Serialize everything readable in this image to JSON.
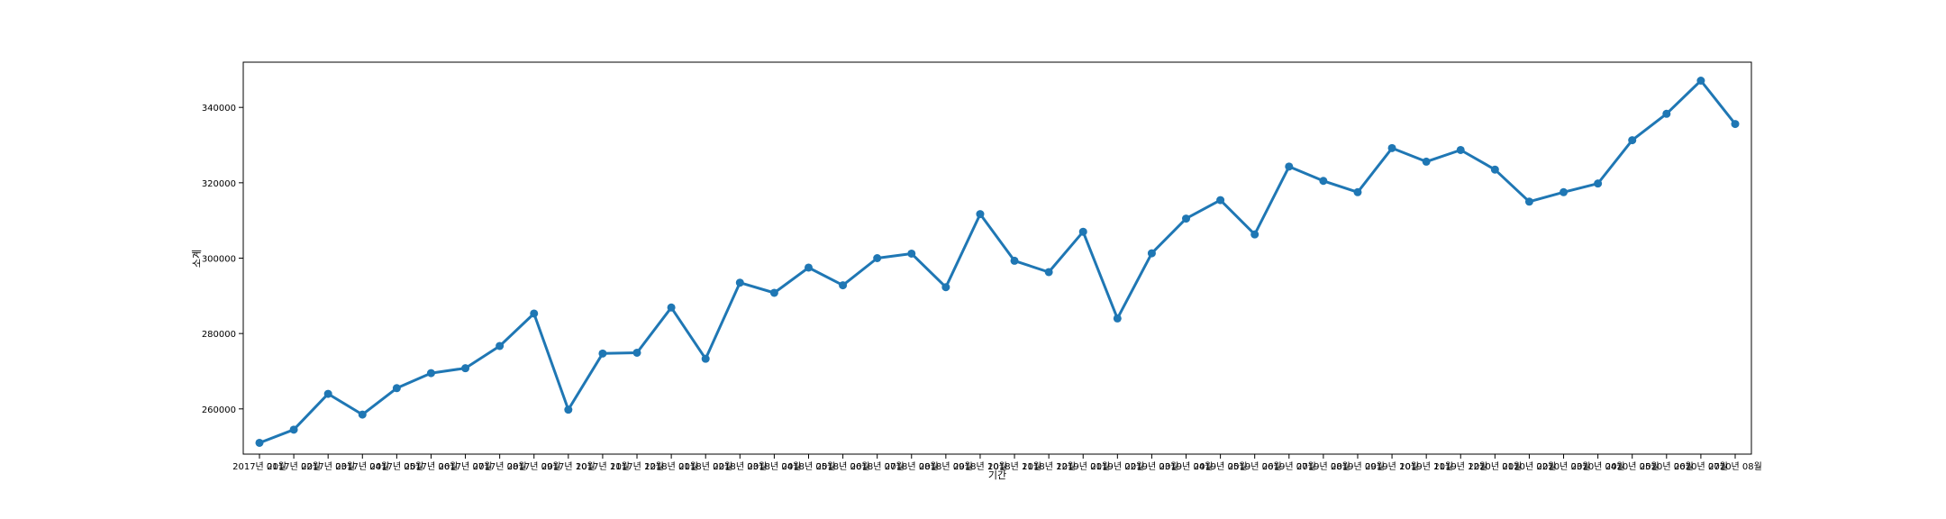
{
  "chart_data": {
    "type": "line",
    "xlabel": "기간",
    "ylabel": "소계",
    "ylim": [
      248000,
      352000
    ],
    "yticks": [
      260000,
      280000,
      300000,
      320000,
      340000
    ],
    "ytick_labels": [
      "260000",
      "280000",
      "300000",
      "320000",
      "340000"
    ],
    "grid": false,
    "legend": "none",
    "color": "#1f77b4",
    "categories": [
      "2017년 01월",
      "2017년 02월",
      "2017년 03월",
      "2017년 04월",
      "2017년 05월",
      "2017년 06월",
      "2017년 07월",
      "2017년 08월",
      "2017년 09월",
      "2017년 10월",
      "2017년 11월",
      "2017년 12월",
      "2018년 01월",
      "2018년 02월",
      "2018년 03월",
      "2018년 04월",
      "2018년 05월",
      "2018년 06월",
      "2018년 07월",
      "2018년 08월",
      "2018년 09월",
      "2018년 10월",
      "2018년 11월",
      "2018년 12월",
      "2019년 01월",
      "2019년 02월",
      "2019년 03월",
      "2019년 04월",
      "2019년 05월",
      "2019년 06월",
      "2019년 07월",
      "2019년 08월",
      "2019년 09월",
      "2019년 10월",
      "2019년 11월",
      "2019년 12월",
      "2020년 01월",
      "2020년 02월",
      "2020년 03월",
      "2020년 04월",
      "2020년 05월",
      "2020년 06월",
      "2020년 07월",
      "2020년 08월"
    ],
    "series": [
      {
        "values": [
          251000,
          254500,
          264000,
          258500,
          265500,
          269500,
          270800,
          276700,
          285300,
          259800,
          274700,
          274900,
          286900,
          273300,
          293500,
          290800,
          297500,
          292800,
          300000,
          301200,
          292300,
          311700,
          299300,
          296300,
          307000,
          284000,
          301300,
          310500,
          315400,
          306300,
          324300,
          320500,
          317500,
          329200,
          325600,
          328700,
          323500,
          315000,
          317500,
          319800,
          331300,
          338300,
          347100,
          335600
        ]
      }
    ]
  }
}
